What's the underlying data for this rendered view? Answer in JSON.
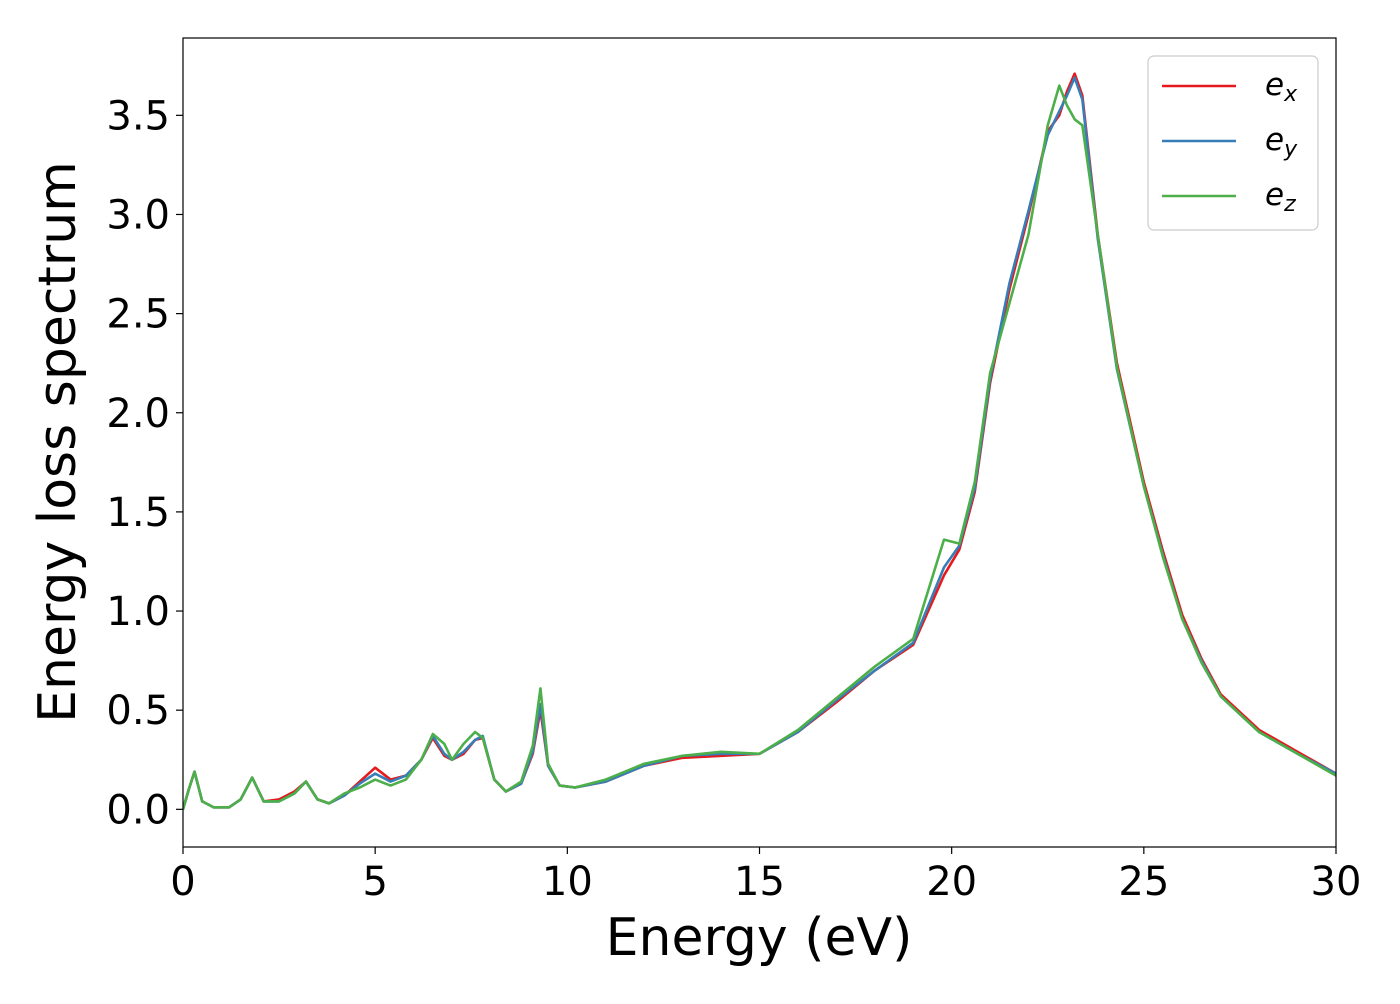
{
  "chart_data": {
    "type": "line",
    "xlabel": "Energy (eV)",
    "ylabel": "Energy loss spectrum",
    "x": [
      0,
      0.15,
      0.3,
      0.5,
      0.8,
      1.2,
      1.5,
      1.8,
      2.1,
      2.5,
      2.9,
      3.2,
      3.5,
      3.8,
      4.2,
      4.6,
      5.0,
      5.4,
      5.8,
      6.2,
      6.5,
      6.8,
      7.0,
      7.3,
      7.6,
      7.8,
      8.1,
      8.4,
      8.8,
      9.1,
      9.3,
      9.5,
      9.8,
      10.2,
      11,
      12,
      13,
      14,
      15,
      16,
      17,
      18,
      19,
      19.8,
      20.2,
      20.6,
      21,
      21.5,
      22,
      22.5,
      22.8,
      23.0,
      23.2,
      23.4,
      23.8,
      24.3,
      25,
      25.5,
      26,
      26.5,
      27,
      28,
      29,
      30
    ],
    "series": [
      {
        "name": "ex",
        "color": "#e41a1c",
        "values": [
          0,
          0.1,
          0.19,
          0.04,
          0.01,
          0.01,
          0.05,
          0.16,
          0.04,
          0.05,
          0.09,
          0.14,
          0.05,
          0.03,
          0.07,
          0.14,
          0.21,
          0.15,
          0.17,
          0.25,
          0.36,
          0.27,
          0.25,
          0.28,
          0.35,
          0.36,
          0.15,
          0.09,
          0.13,
          0.28,
          0.5,
          0.22,
          0.12,
          0.11,
          0.14,
          0.22,
          0.26,
          0.27,
          0.28,
          0.39,
          0.54,
          0.7,
          0.83,
          1.18,
          1.31,
          1.6,
          2.15,
          2.62,
          3.0,
          3.42,
          3.5,
          3.62,
          3.71,
          3.6,
          2.9,
          2.25,
          1.65,
          1.3,
          0.98,
          0.76,
          0.58,
          0.4,
          0.29,
          0.18
        ]
      },
      {
        "name": "ey",
        "color": "#377eb8",
        "values": [
          0,
          0.1,
          0.19,
          0.04,
          0.01,
          0.01,
          0.05,
          0.16,
          0.04,
          0.04,
          0.08,
          0.14,
          0.05,
          0.03,
          0.07,
          0.13,
          0.18,
          0.14,
          0.17,
          0.25,
          0.37,
          0.28,
          0.25,
          0.29,
          0.35,
          0.37,
          0.15,
          0.09,
          0.13,
          0.29,
          0.53,
          0.22,
          0.12,
          0.11,
          0.14,
          0.22,
          0.27,
          0.28,
          0.28,
          0.39,
          0.55,
          0.7,
          0.84,
          1.22,
          1.33,
          1.62,
          2.17,
          2.65,
          3.02,
          3.4,
          3.52,
          3.6,
          3.69,
          3.58,
          2.88,
          2.22,
          1.63,
          1.28,
          0.96,
          0.75,
          0.57,
          0.39,
          0.28,
          0.18
        ]
      },
      {
        "name": "ez",
        "color": "#4daf4a",
        "values": [
          0,
          0.1,
          0.19,
          0.04,
          0.01,
          0.01,
          0.05,
          0.16,
          0.04,
          0.04,
          0.08,
          0.14,
          0.05,
          0.03,
          0.08,
          0.11,
          0.15,
          0.12,
          0.15,
          0.25,
          0.38,
          0.33,
          0.25,
          0.33,
          0.39,
          0.36,
          0.15,
          0.09,
          0.14,
          0.32,
          0.61,
          0.23,
          0.12,
          0.11,
          0.15,
          0.23,
          0.27,
          0.29,
          0.28,
          0.4,
          0.56,
          0.72,
          0.86,
          1.36,
          1.34,
          1.65,
          2.2,
          2.55,
          2.9,
          3.45,
          3.65,
          3.55,
          3.48,
          3.45,
          2.9,
          2.23,
          1.63,
          1.27,
          0.96,
          0.74,
          0.57,
          0.39,
          0.28,
          0.17
        ]
      }
    ],
    "xlim": [
      0,
      30
    ],
    "xticks": [
      0,
      5,
      10,
      15,
      20,
      25,
      30
    ],
    "ylim": [
      -0.19,
      3.89
    ],
    "yticks": [
      {
        "value": 0,
        "label": "0.0"
      },
      0.5,
      {
        "value": 1,
        "label": "1.0"
      },
      1.5,
      {
        "value": 2,
        "label": "2.0"
      },
      2.5,
      {
        "value": 3,
        "label": "3.0"
      },
      3.5
    ],
    "grid": false,
    "legend": "upper right"
  }
}
